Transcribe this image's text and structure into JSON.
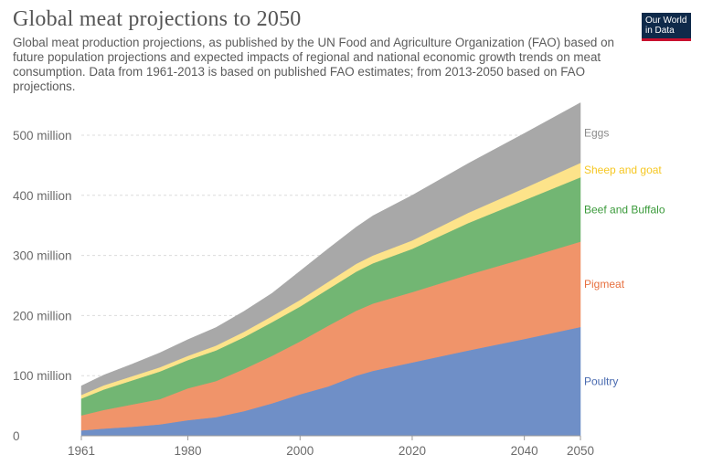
{
  "header": {
    "title": "Global meat projections to 2050",
    "subtitle": "Global meat production projections, as published by the UN Food and Agriculture Organization (FAO) based on future population projections and expected impacts of regional and national economic growth trends on meat consumption. Data from 1961-2013 is based on published FAO estimates; from 2013-2050 based on FAO projections."
  },
  "logo": {
    "line1": "Our World",
    "line2": "in Data",
    "bg": "#0f2a4a",
    "accent": "#c8102e"
  },
  "chart_data": {
    "type": "area",
    "stacked": true,
    "unit": "tonnes",
    "x": [
      1961,
      1965,
      1970,
      1975,
      1980,
      1985,
      1990,
      1995,
      2000,
      2005,
      2010,
      2013,
      2020,
      2030,
      2040,
      2050
    ],
    "series": [
      {
        "name": "Poultry",
        "color": "#6f8fc7",
        "labelColor": "#4a6bb0",
        "values": [
          9,
          12,
          15,
          19,
          26,
          31,
          41,
          54,
          69,
          82,
          100,
          108,
          122,
          142,
          161,
          181
        ]
      },
      {
        "name": "Pigmeat",
        "color": "#f0946a",
        "labelColor": "#e76f3e",
        "values": [
          25,
          31,
          37,
          42,
          53,
          60,
          70,
          79,
          88,
          101,
          108,
          112,
          117,
          126,
          134,
          142
        ]
      },
      {
        "name": "Beef and Buffalo",
        "color": "#72b673",
        "labelColor": "#3a9a3a",
        "values": [
          28,
          34,
          40,
          46,
          47,
          51,
          53,
          56,
          58,
          61,
          65,
          67,
          72,
          86,
          97,
          107
        ]
      },
      {
        "name": "Sheep and goat",
        "color": "#fde38a",
        "labelColor": "#f6c722",
        "values": [
          6,
          7,
          7,
          7,
          7,
          8,
          9,
          10,
          11,
          12,
          13,
          13,
          14,
          17,
          20,
          24
        ]
      },
      {
        "name": "Eggs",
        "color": "#a8a8a8",
        "labelColor": "#8a8a8a",
        "values": [
          15,
          17,
          20,
          24,
          27,
          30,
          34,
          38,
          48,
          55,
          61,
          66,
          75,
          82,
          91,
          100
        ]
      }
    ],
    "xlim": [
      1961,
      2050
    ],
    "ylim": [
      0,
      500000000
    ],
    "xticks": [
      "1961",
      "1980",
      "2000",
      "2020",
      "2040",
      "2050"
    ],
    "yticks": [
      "0",
      "100 million",
      "200 million",
      "300 million",
      "400 million",
      "500 million"
    ],
    "xlabel": "",
    "ylabel": "",
    "grid": "horizontal-dashed",
    "legend": "inline-right"
  }
}
